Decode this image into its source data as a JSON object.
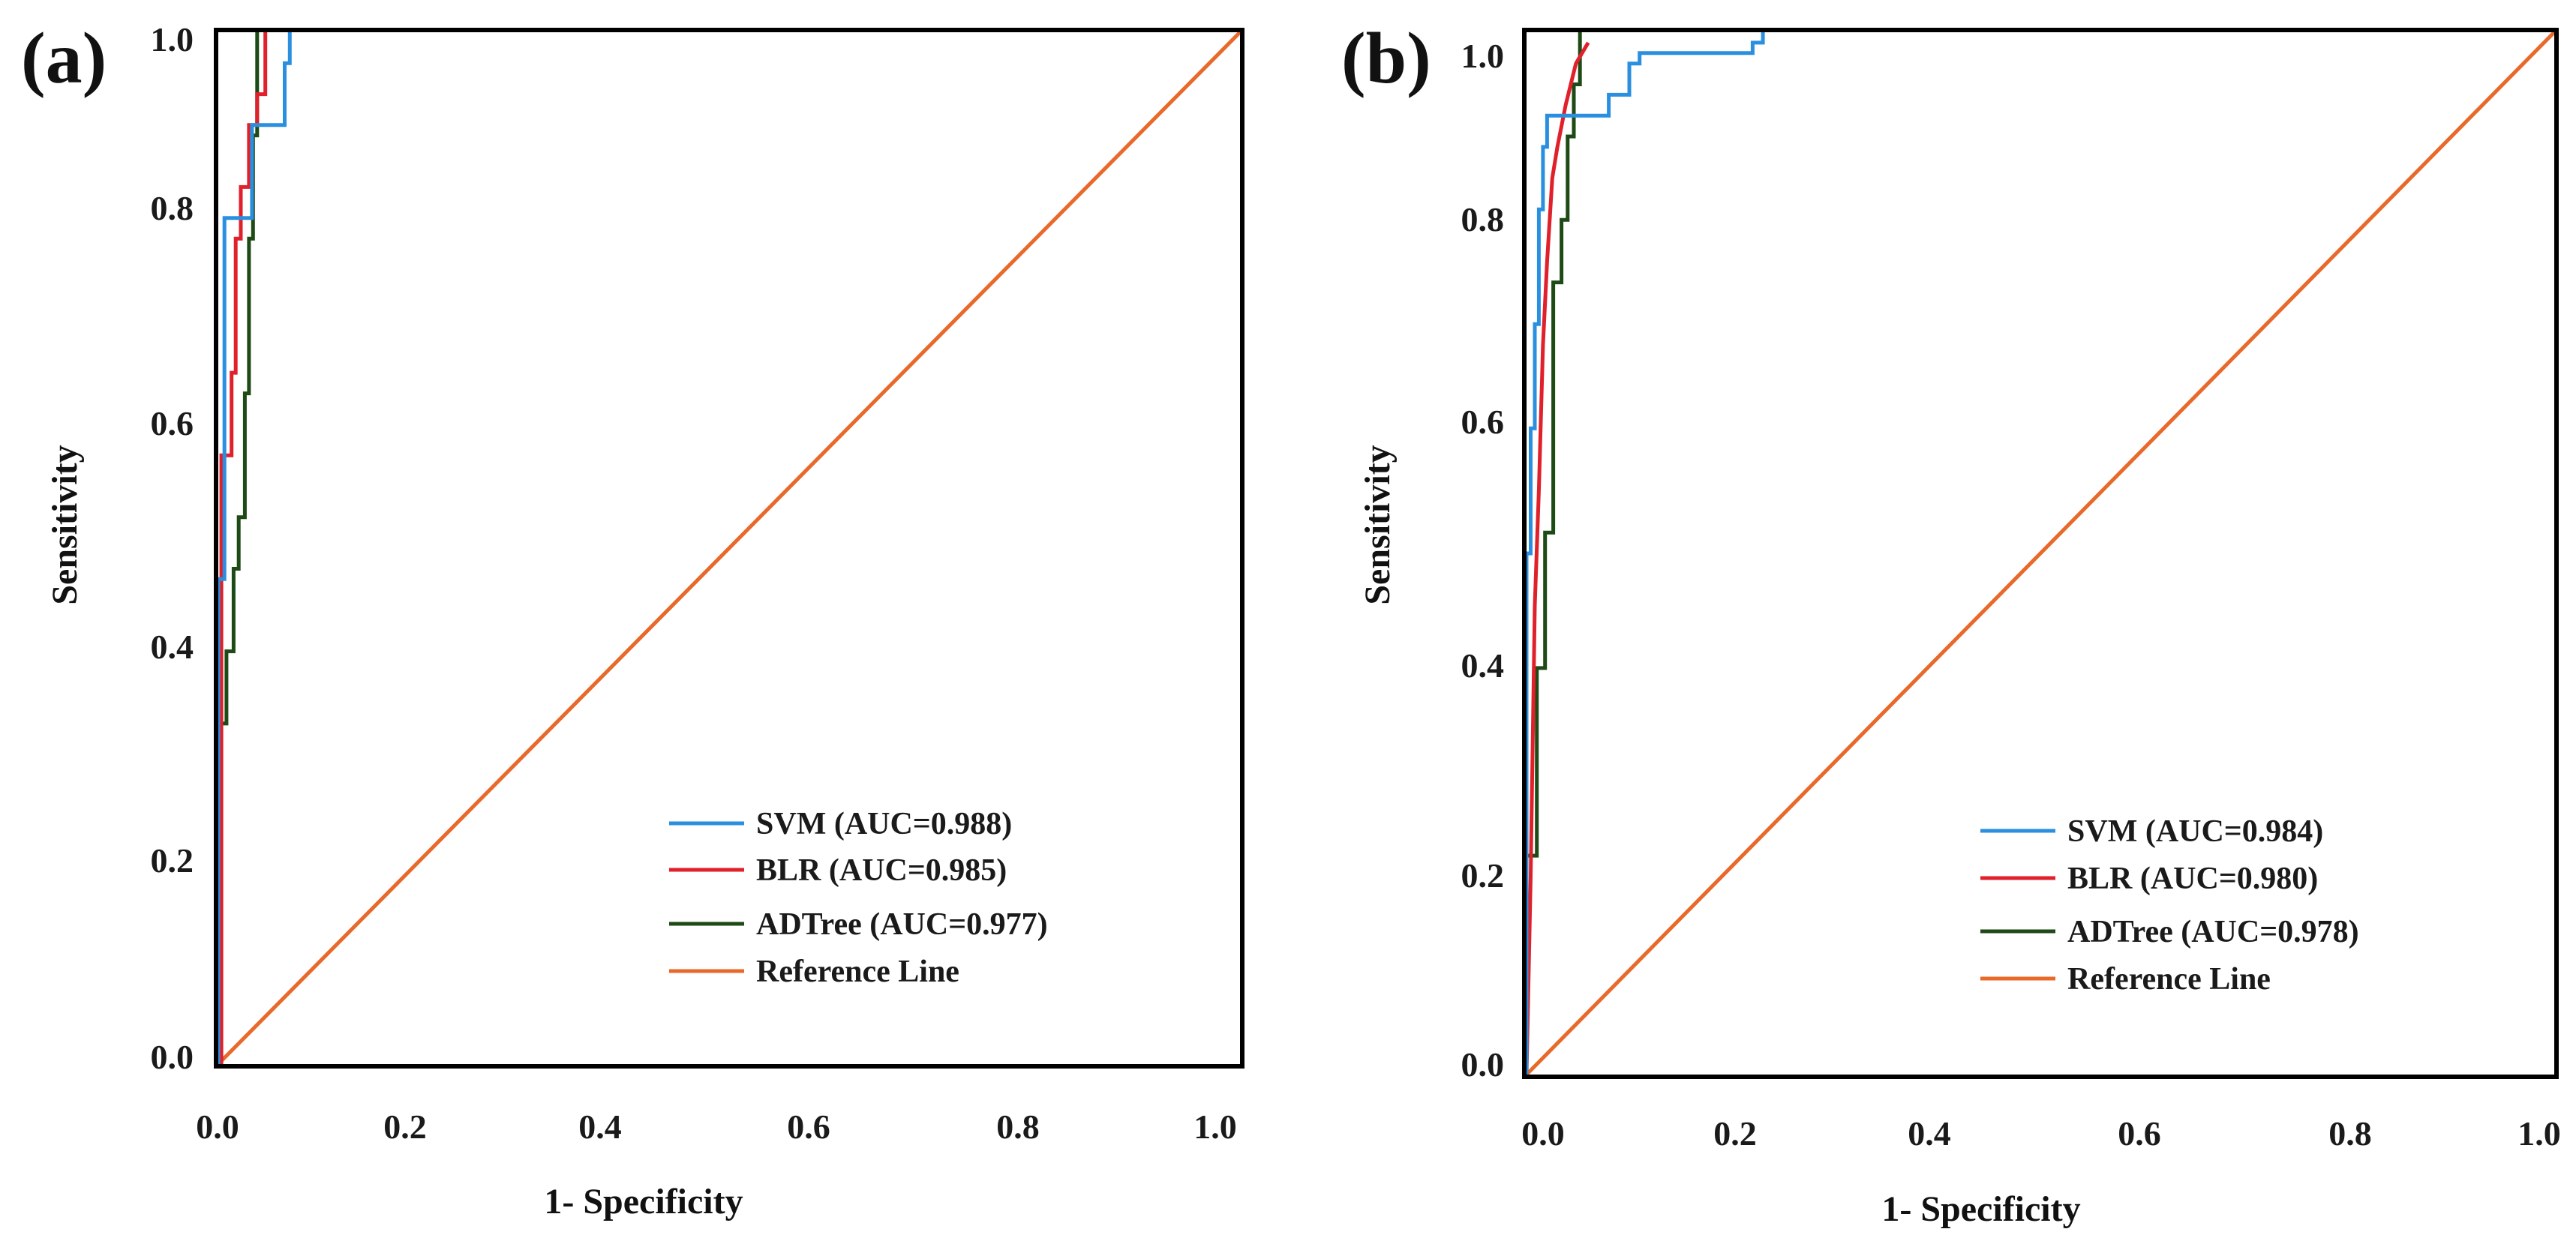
{
  "colors": {
    "svm": "#2b8fe0",
    "blr": "#e0202a",
    "adtree": "#1e4a16",
    "reference": "#e8692a",
    "frame": "#000000"
  },
  "chart_data": [
    {
      "type": "line",
      "panel_label": "(a)",
      "xlabel": "1- Specificity",
      "ylabel": "Sensitivity",
      "xlim": [
        0,
        1
      ],
      "ylim": [
        0,
        1
      ],
      "xticks": [
        "0.0",
        "0.2",
        "0.4",
        "0.6",
        "0.8",
        "1.0"
      ],
      "yticks": [
        "0.0",
        "0.2",
        "0.4",
        "0.6",
        "0.8",
        "1.0"
      ],
      "grid": false,
      "legend_position": "bottom-right",
      "series": [
        {
          "name": "SVM (AUC=0.988)",
          "key": "svm",
          "auc": 0.988,
          "x": [
            0,
            0,
            0.006,
            0.006,
            0.013,
            0.013,
            0.033,
            0.033,
            0.065,
            0.065,
            0.07,
            0.07
          ],
          "y": [
            0,
            0.47,
            0.47,
            0.82,
            0.82,
            0.82,
            0.82,
            0.91,
            0.91,
            0.97,
            0.97,
            1.0
          ]
        },
        {
          "name": "BLR (AUC=0.985)",
          "key": "blr",
          "auc": 0.985,
          "x": [
            0,
            0.003,
            0.003,
            0.013,
            0.013,
            0.017,
            0.017,
            0.022,
            0.022,
            0.03,
            0.03,
            0.038,
            0.038,
            0.046,
            0.046
          ],
          "y": [
            0,
            0.0,
            0.59,
            0.59,
            0.67,
            0.67,
            0.8,
            0.8,
            0.85,
            0.85,
            0.91,
            0.91,
            0.94,
            0.94,
            1.0
          ]
        },
        {
          "name": "ADTree (AUC=0.977)",
          "key": "adtree",
          "auc": 0.977,
          "x": [
            0,
            0,
            0.008,
            0.008,
            0.015,
            0.015,
            0.02,
            0.02,
            0.026,
            0.026,
            0.03,
            0.03,
            0.034,
            0.034,
            0.038,
            0.038
          ],
          "y": [
            0,
            0.33,
            0.33,
            0.4,
            0.4,
            0.48,
            0.48,
            0.53,
            0.53,
            0.65,
            0.65,
            0.8,
            0.8,
            0.9,
            0.9,
            1.0
          ]
        },
        {
          "name": "Reference Line",
          "key": "reference",
          "x": [
            0,
            1
          ],
          "y": [
            0,
            1
          ]
        }
      ]
    },
    {
      "type": "line",
      "panel_label": "(b)",
      "xlabel": "1- Specificity",
      "ylabel": "Sensitivity",
      "xlim": [
        0,
        1
      ],
      "ylim": [
        0,
        1
      ],
      "xticks": [
        "0.0",
        "0.2",
        "0.4",
        "0.6",
        "0.8",
        "1.0"
      ],
      "yticks": [
        "0.0",
        "0.2",
        "0.4",
        "0.6",
        "0.8",
        "1.0"
      ],
      "grid": false,
      "legend_position": "bottom-right",
      "series": [
        {
          "name": "SVM (AUC=0.984)",
          "key": "svm",
          "auc": 0.984,
          "x": [
            0,
            0,
            0.004,
            0.004,
            0.008,
            0.008,
            0.012,
            0.012,
            0.016,
            0.016,
            0.02,
            0.02,
            0.05,
            0.05,
            0.08,
            0.08,
            0.1,
            0.1,
            0.11,
            0.11,
            0.14,
            0.14,
            0.22,
            0.22,
            0.23,
            0.23
          ],
          "y": [
            0,
            0.5,
            0.5,
            0.62,
            0.62,
            0.72,
            0.72,
            0.83,
            0.83,
            0.89,
            0.89,
            0.92,
            0.92,
            0.92,
            0.92,
            0.94,
            0.94,
            0.97,
            0.97,
            0.98,
            0.98,
            0.98,
            0.98,
            0.99,
            0.99,
            1.0
          ]
        },
        {
          "name": "BLR (AUC=0.980)",
          "key": "blr",
          "auc": 0.98,
          "x": [
            0,
            0.004,
            0.004,
            0.008,
            0.008,
            0.012,
            0.012,
            0.016,
            0.016,
            0.02,
            0.02,
            0.025,
            0.025,
            0.03,
            0.03,
            0.038,
            0.038,
            0.048,
            0.048,
            0.06,
            0.06
          ],
          "y": [
            0,
            0.19,
            0.19,
            0.45,
            0.45,
            0.56,
            0.56,
            0.7,
            0.7,
            0.78,
            0.78,
            0.86,
            0.86,
            0.89,
            0.89,
            0.93,
            0.93,
            0.97,
            0.97,
            0.99,
            0.99
          ]
        },
        {
          "name": "ADTree (AUC=0.978)",
          "key": "adtree",
          "auc": 0.978,
          "x": [
            0,
            0,
            0.01,
            0.01,
            0.018,
            0.018,
            0.026,
            0.026,
            0.034,
            0.034,
            0.04,
            0.04,
            0.046,
            0.046,
            0.052,
            0.052
          ],
          "y": [
            0,
            0.21,
            0.21,
            0.39,
            0.39,
            0.52,
            0.52,
            0.76,
            0.76,
            0.82,
            0.82,
            0.9,
            0.9,
            0.95,
            0.95,
            1.0
          ]
        },
        {
          "name": "Reference Line",
          "key": "reference",
          "x": [
            0,
            1
          ],
          "y": [
            0,
            1
          ]
        }
      ]
    }
  ]
}
